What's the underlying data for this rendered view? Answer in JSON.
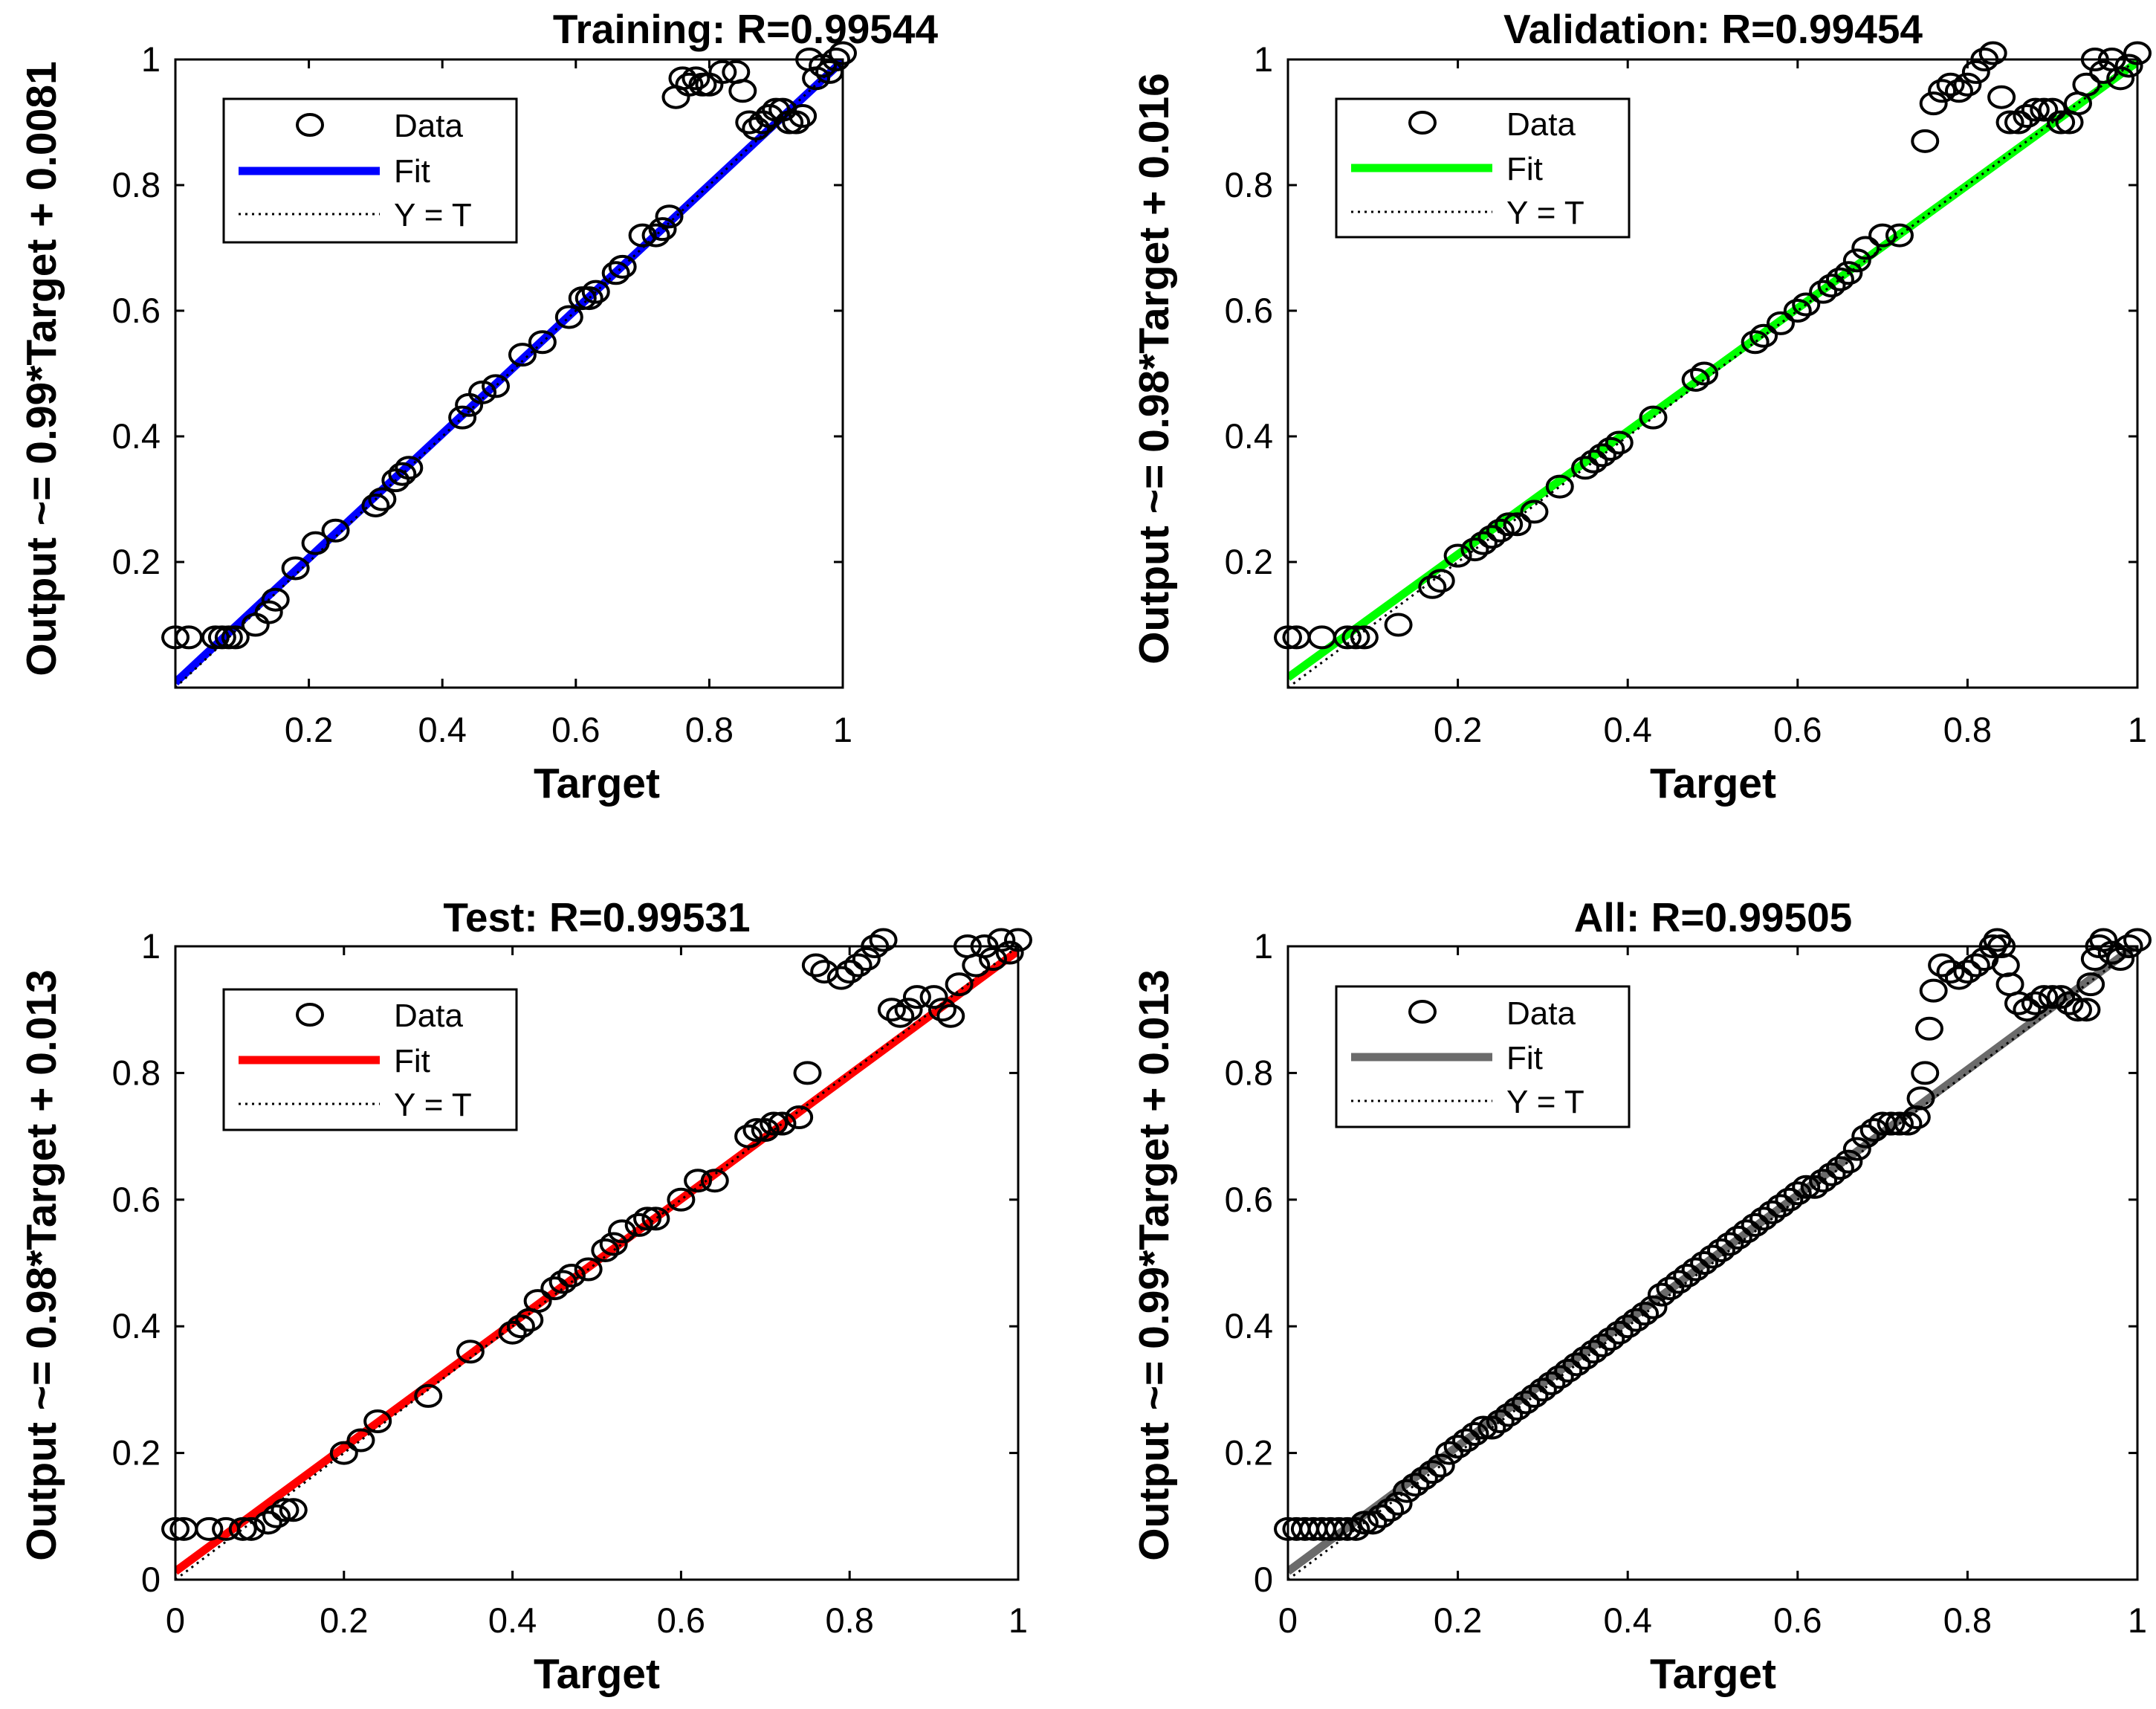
{
  "chart_data": [
    {
      "type": "scatter",
      "title": "Training: R=0.99544",
      "xlabel": "Target",
      "ylabel": "Output ~= 0.99*Target + 0.0081",
      "xlim": [
        0,
        1
      ],
      "ylim": [
        0,
        1
      ],
      "xticks": [
        "0.2",
        "0.4",
        "0.6",
        "0.8",
        "1"
      ],
      "yticks": [
        "0.2",
        "0.4",
        "0.6",
        "0.8",
        "1"
      ],
      "fit": {
        "slope": 0.99,
        "intercept": 0.0081,
        "color": "#0000ff"
      },
      "legend": [
        "Data",
        "Fit",
        "Y = T"
      ],
      "series": [
        {
          "name": "Data",
          "x": [
            0.0,
            0.02,
            0.06,
            0.07,
            0.08,
            0.09,
            0.12,
            0.14,
            0.15,
            0.18,
            0.21,
            0.24,
            0.3,
            0.31,
            0.33,
            0.34,
            0.35,
            0.43,
            0.44,
            0.46,
            0.48,
            0.52,
            0.55,
            0.59,
            0.61,
            0.62,
            0.63,
            0.66,
            0.67,
            0.7,
            0.72,
            0.73,
            0.74,
            0.75,
            0.76,
            0.77,
            0.78,
            0.79,
            0.8,
            0.82,
            0.84,
            0.85,
            0.86,
            0.87,
            0.88,
            0.89,
            0.9,
            0.91,
            0.92,
            0.93,
            0.94,
            0.95,
            0.96,
            0.97,
            0.98,
            0.99,
            1.0
          ],
          "y": [
            0.08,
            0.08,
            0.08,
            0.08,
            0.08,
            0.08,
            0.1,
            0.12,
            0.14,
            0.19,
            0.23,
            0.25,
            0.29,
            0.3,
            0.33,
            0.34,
            0.35,
            0.43,
            0.45,
            0.47,
            0.48,
            0.53,
            0.55,
            0.59,
            0.62,
            0.62,
            0.63,
            0.66,
            0.67,
            0.72,
            0.72,
            0.73,
            0.75,
            0.94,
            0.97,
            0.96,
            0.97,
            0.96,
            0.96,
            0.98,
            0.98,
            0.95,
            0.9,
            0.89,
            0.9,
            0.91,
            0.92,
            0.92,
            0.9,
            0.9,
            0.91,
            1.0,
            0.97,
            0.99,
            0.98,
            1.0,
            1.01
          ]
        }
      ]
    },
    {
      "type": "scatter",
      "title": "Validation: R=0.99454",
      "xlabel": "Target",
      "ylabel": "Output ~= 0.98*Target + 0.016",
      "xlim": [
        0,
        1
      ],
      "ylim": [
        0,
        1
      ],
      "xticks": [
        "0.2",
        "0.4",
        "0.6",
        "0.8",
        "1"
      ],
      "yticks": [
        "0.2",
        "0.4",
        "0.6",
        "0.8",
        "1"
      ],
      "fit": {
        "slope": 0.98,
        "intercept": 0.016,
        "color": "#00ff00"
      },
      "legend": [
        "Data",
        "Fit",
        "Y = T"
      ],
      "series": [
        {
          "name": "Data",
          "x": [
            0.0,
            0.01,
            0.04,
            0.07,
            0.08,
            0.09,
            0.13,
            0.17,
            0.18,
            0.2,
            0.22,
            0.23,
            0.24,
            0.25,
            0.26,
            0.27,
            0.29,
            0.32,
            0.35,
            0.36,
            0.37,
            0.38,
            0.39,
            0.43,
            0.48,
            0.49,
            0.55,
            0.56,
            0.58,
            0.6,
            0.61,
            0.63,
            0.64,
            0.65,
            0.66,
            0.67,
            0.68,
            0.7,
            0.72,
            0.75,
            0.76,
            0.77,
            0.78,
            0.79,
            0.8,
            0.81,
            0.82,
            0.83,
            0.84,
            0.85,
            0.86,
            0.87,
            0.88,
            0.89,
            0.9,
            0.91,
            0.92,
            0.93,
            0.94,
            0.95,
            0.96,
            0.97,
            0.98,
            0.99,
            1.0
          ],
          "y": [
            0.08,
            0.08,
            0.08,
            0.08,
            0.08,
            0.08,
            0.1,
            0.16,
            0.17,
            0.21,
            0.22,
            0.23,
            0.24,
            0.25,
            0.26,
            0.26,
            0.28,
            0.32,
            0.35,
            0.36,
            0.37,
            0.38,
            0.39,
            0.43,
            0.49,
            0.5,
            0.55,
            0.56,
            0.58,
            0.6,
            0.61,
            0.63,
            0.64,
            0.65,
            0.66,
            0.68,
            0.7,
            0.72,
            0.72,
            0.87,
            0.93,
            0.95,
            0.96,
            0.95,
            0.96,
            0.98,
            1.0,
            1.01,
            0.94,
            0.9,
            0.9,
            0.91,
            0.92,
            0.92,
            0.92,
            0.9,
            0.9,
            0.93,
            0.96,
            1.0,
            0.98,
            1.0,
            0.97,
            0.99,
            1.01
          ]
        }
      ]
    },
    {
      "type": "scatter",
      "title": "Test: R=0.99531",
      "xlabel": "Target",
      "ylabel": "Output ~= 0.98*Target + 0.013",
      "xlim": [
        0,
        1
      ],
      "ylim": [
        0,
        1
      ],
      "xticks": [
        "0",
        "0.2",
        "0.4",
        "0.6",
        "0.8",
        "1"
      ],
      "yticks": [
        "0",
        "0.2",
        "0.4",
        "0.6",
        "0.8",
        "1"
      ],
      "fit": {
        "slope": 0.98,
        "intercept": 0.013,
        "color": "#ff0000"
      },
      "legend": [
        "Data",
        "Fit",
        "Y = T"
      ],
      "series": [
        {
          "name": "Data",
          "x": [
            0.0,
            0.01,
            0.04,
            0.06,
            0.08,
            0.09,
            0.11,
            0.12,
            0.13,
            0.14,
            0.2,
            0.22,
            0.24,
            0.3,
            0.35,
            0.4,
            0.41,
            0.42,
            0.43,
            0.45,
            0.46,
            0.47,
            0.49,
            0.51,
            0.52,
            0.53,
            0.55,
            0.56,
            0.57,
            0.6,
            0.62,
            0.64,
            0.68,
            0.69,
            0.7,
            0.71,
            0.72,
            0.74,
            0.75,
            0.76,
            0.77,
            0.79,
            0.8,
            0.81,
            0.82,
            0.83,
            0.84,
            0.85,
            0.86,
            0.87,
            0.88,
            0.9,
            0.91,
            0.92,
            0.93,
            0.94,
            0.95,
            0.96,
            0.97,
            0.98,
            0.99,
            1.0
          ],
          "y": [
            0.08,
            0.08,
            0.08,
            0.08,
            0.08,
            0.08,
            0.09,
            0.1,
            0.11,
            0.11,
            0.2,
            0.22,
            0.25,
            0.29,
            0.36,
            0.39,
            0.4,
            0.41,
            0.44,
            0.46,
            0.47,
            0.48,
            0.49,
            0.52,
            0.53,
            0.55,
            0.56,
            0.57,
            0.57,
            0.6,
            0.63,
            0.63,
            0.7,
            0.71,
            0.71,
            0.72,
            0.72,
            0.73,
            0.8,
            0.97,
            0.96,
            0.95,
            0.96,
            0.97,
            0.98,
            1.0,
            1.01,
            0.9,
            0.89,
            0.9,
            0.92,
            0.92,
            0.9,
            0.89,
            0.94,
            1.0,
            0.97,
            1.0,
            0.98,
            1.01,
            0.99,
            1.01
          ]
        }
      ]
    },
    {
      "type": "scatter",
      "title": "All: R=0.99505",
      "xlabel": "Target",
      "ylabel": "Output ~= 0.99*Target + 0.013",
      "xlim": [
        0,
        1
      ],
      "ylim": [
        0,
        1
      ],
      "xticks": [
        "0",
        "0.2",
        "0.4",
        "0.6",
        "0.8",
        "1"
      ],
      "yticks": [
        "0",
        "0.2",
        "0.4",
        "0.6",
        "0.8",
        "1"
      ],
      "fit": {
        "slope": 0.99,
        "intercept": 0.013,
        "color": "#6b6b6b"
      },
      "legend": [
        "Data",
        "Fit",
        "Y = T"
      ],
      "series": [
        {
          "name": "Data",
          "x": [
            0.0,
            0.01,
            0.02,
            0.03,
            0.04,
            0.05,
            0.06,
            0.07,
            0.08,
            0.09,
            0.1,
            0.11,
            0.12,
            0.13,
            0.14,
            0.15,
            0.16,
            0.17,
            0.18,
            0.19,
            0.2,
            0.21,
            0.22,
            0.23,
            0.24,
            0.25,
            0.26,
            0.27,
            0.28,
            0.29,
            0.3,
            0.31,
            0.32,
            0.33,
            0.34,
            0.35,
            0.36,
            0.37,
            0.38,
            0.39,
            0.4,
            0.41,
            0.42,
            0.43,
            0.44,
            0.45,
            0.46,
            0.47,
            0.48,
            0.49,
            0.5,
            0.51,
            0.52,
            0.53,
            0.54,
            0.55,
            0.56,
            0.57,
            0.58,
            0.59,
            0.6,
            0.61,
            0.62,
            0.63,
            0.64,
            0.65,
            0.66,
            0.67,
            0.68,
            0.69,
            0.7,
            0.71,
            0.72,
            0.73,
            0.74,
            0.745,
            0.75,
            0.755,
            0.76,
            0.77,
            0.78,
            0.79,
            0.8,
            0.81,
            0.82,
            0.83,
            0.835,
            0.84,
            0.845,
            0.85,
            0.86,
            0.87,
            0.88,
            0.89,
            0.9,
            0.91,
            0.92,
            0.93,
            0.94,
            0.945,
            0.95,
            0.955,
            0.96,
            0.97,
            0.98,
            0.99,
            1.0
          ],
          "y": [
            0.08,
            0.08,
            0.08,
            0.08,
            0.08,
            0.08,
            0.08,
            0.08,
            0.08,
            0.09,
            0.09,
            0.1,
            0.11,
            0.12,
            0.14,
            0.15,
            0.16,
            0.17,
            0.18,
            0.2,
            0.21,
            0.22,
            0.23,
            0.24,
            0.24,
            0.25,
            0.26,
            0.27,
            0.28,
            0.29,
            0.3,
            0.31,
            0.32,
            0.33,
            0.34,
            0.35,
            0.36,
            0.37,
            0.38,
            0.39,
            0.4,
            0.41,
            0.42,
            0.43,
            0.45,
            0.46,
            0.47,
            0.48,
            0.49,
            0.5,
            0.51,
            0.52,
            0.53,
            0.54,
            0.55,
            0.56,
            0.57,
            0.58,
            0.59,
            0.6,
            0.61,
            0.62,
            0.62,
            0.63,
            0.64,
            0.65,
            0.66,
            0.68,
            0.7,
            0.71,
            0.72,
            0.72,
            0.72,
            0.72,
            0.73,
            0.76,
            0.8,
            0.87,
            0.93,
            0.97,
            0.96,
            0.95,
            0.96,
            0.97,
            0.98,
            1.0,
            1.01,
            1.0,
            0.97,
            0.94,
            0.91,
            0.9,
            0.91,
            0.92,
            0.92,
            0.92,
            0.91,
            0.9,
            0.9,
            0.94,
            0.98,
            1.0,
            1.01,
            0.99,
            0.98,
            1.0,
            1.01
          ]
        }
      ]
    }
  ]
}
